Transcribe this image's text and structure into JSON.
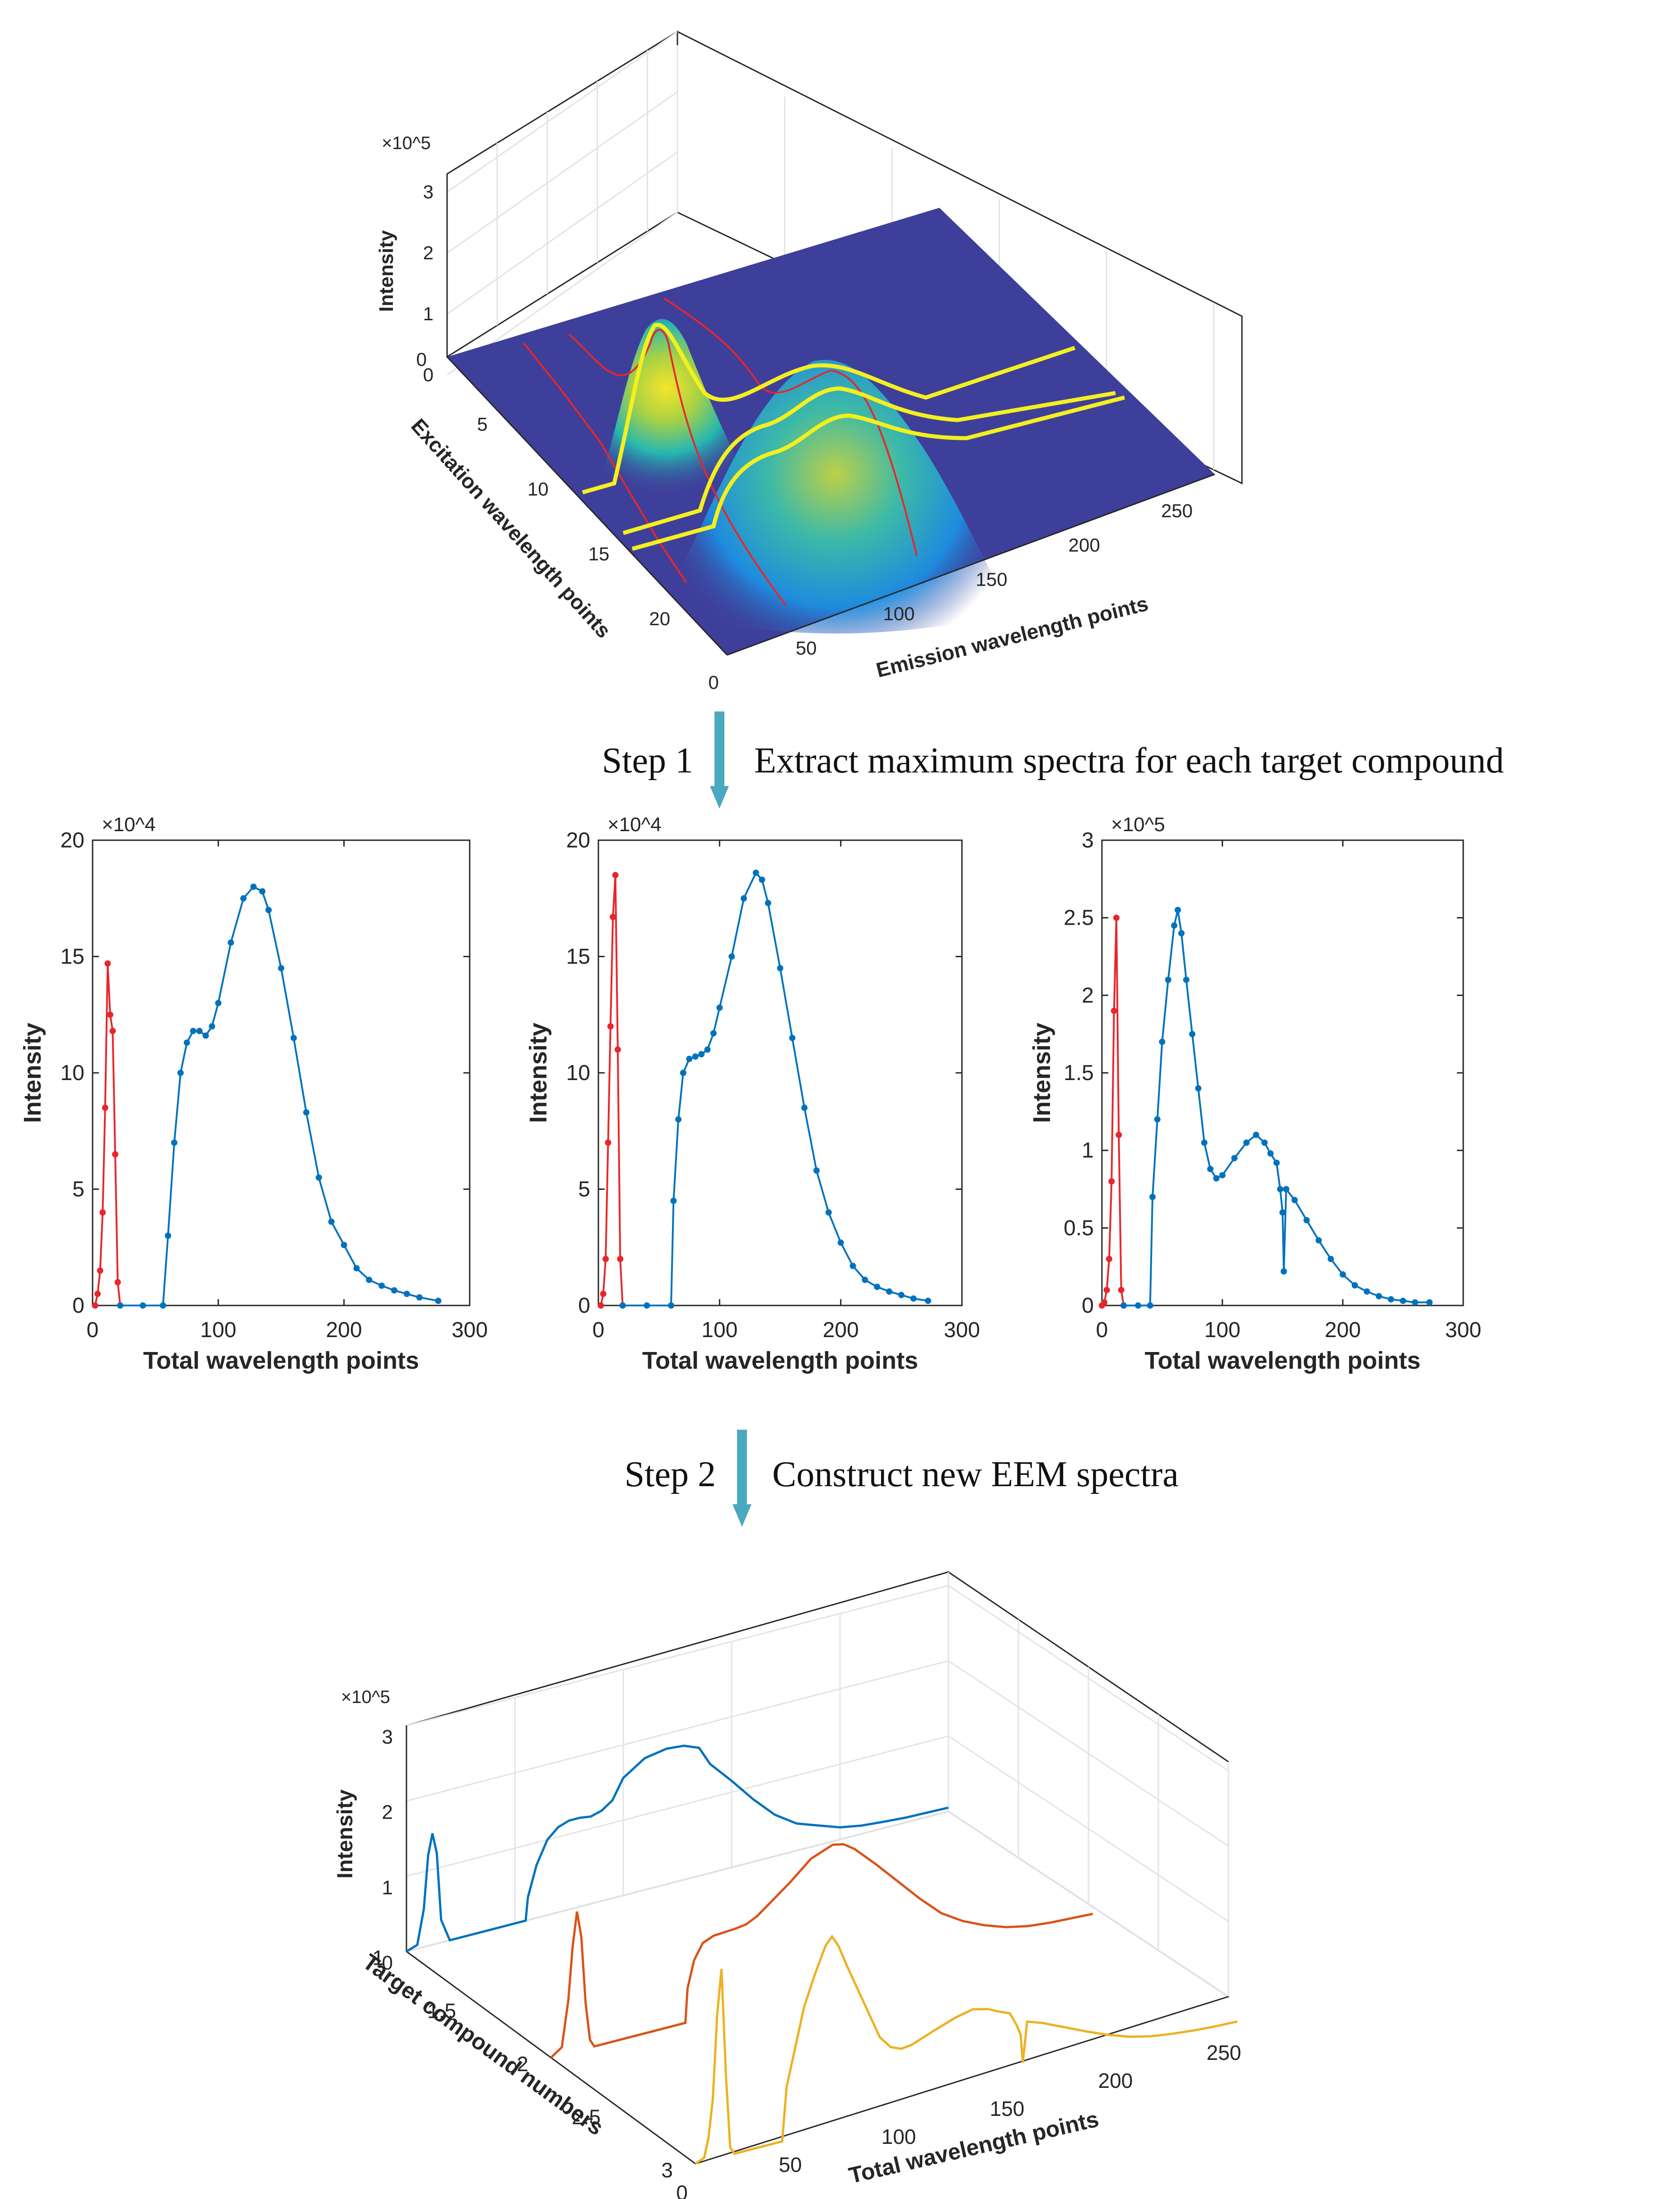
{
  "colors": {
    "blue": "#0072BD",
    "red": "#E8262B",
    "orange": "#D95319",
    "yellow": "#EDB120",
    "arrow": "#4AA8C0",
    "surface_low": "#3E3F9A",
    "highlight": "#F4EF1F"
  },
  "steps": [
    {
      "label": "Step 1",
      "text": "Extract maximum spectra for each target compound"
    },
    {
      "label": "Step 2",
      "text": "Construct new EEM spectra"
    }
  ],
  "chart_data": [
    {
      "type": "surface",
      "xlabel": "Emission wavelength points",
      "ylabel": "Excitation wavelength points",
      "zlabel": "Intensity",
      "exponent": "×10^5",
      "x_ticks": [
        "0",
        "50",
        "100",
        "150",
        "200",
        "250"
      ],
      "y_ticks": [
        "0",
        "5",
        "10",
        "15",
        "20"
      ],
      "z_ticks": [
        "0",
        "1",
        "2",
        "3"
      ],
      "xlim": [
        0,
        250
      ],
      "ylim": [
        0,
        23
      ],
      "zlim": [
        0,
        3
      ],
      "grid": true,
      "peaks": [
        {
          "emission": 30,
          "excitation": 10,
          "intensity": 1.4
        },
        {
          "emission": 110,
          "excitation": 12,
          "intensity": 1.0
        }
      ]
    },
    {
      "type": "line",
      "xlabel": "Total wavelength points",
      "ylabel": "Intensity",
      "exponent": "×10^4",
      "xlim": [
        0,
        300
      ],
      "ylim": [
        0,
        20
      ],
      "x_ticks": [
        "0",
        "100",
        "200",
        "300"
      ],
      "y_ticks": [
        "0",
        "5",
        "10",
        "15",
        "20"
      ],
      "series": [
        {
          "color": "red",
          "x": [
            2,
            4,
            6,
            8,
            10,
            12,
            14,
            16,
            18,
            20,
            22
          ],
          "y": [
            0,
            0.5,
            1.5,
            4,
            8.5,
            14.7,
            12.5,
            11.8,
            6.5,
            1,
            0
          ]
        },
        {
          "color": "blue",
          "x": [
            22,
            40,
            56,
            60,
            65,
            70,
            75,
            80,
            85,
            90,
            95,
            100,
            110,
            120,
            128,
            135,
            140,
            150,
            160,
            170,
            180,
            190,
            200,
            210,
            220,
            230,
            240,
            250,
            260,
            275
          ],
          "y": [
            0,
            0,
            0,
            3,
            7,
            10,
            11.3,
            11.8,
            11.8,
            11.6,
            12,
            13,
            15.6,
            17.5,
            18,
            17.8,
            17,
            14.5,
            11.5,
            8.3,
            5.5,
            3.6,
            2.6,
            1.6,
            1.1,
            0.85,
            0.65,
            0.5,
            0.35,
            0.2
          ]
        }
      ]
    },
    {
      "type": "line",
      "xlabel": "Total wavelength points",
      "ylabel": "Intensity",
      "exponent": "×10^4",
      "xlim": [
        0,
        300
      ],
      "ylim": [
        0,
        20
      ],
      "x_ticks": [
        "0",
        "100",
        "200",
        "300"
      ],
      "y_ticks": [
        "0",
        "5",
        "10",
        "15",
        "20"
      ],
      "series": [
        {
          "color": "red",
          "x": [
            2,
            4,
            6,
            8,
            10,
            12,
            14,
            16,
            18,
            20
          ],
          "y": [
            0,
            0.5,
            2,
            7,
            12,
            16.7,
            18.5,
            11,
            2,
            0
          ]
        },
        {
          "color": "blue",
          "x": [
            20,
            40,
            60,
            62,
            66,
            70,
            75,
            80,
            85,
            90,
            95,
            100,
            110,
            120,
            130,
            135,
            140,
            150,
            160,
            170,
            180,
            190,
            200,
            210,
            220,
            230,
            240,
            250,
            260,
            272
          ],
          "y": [
            0,
            0,
            0,
            4.5,
            8,
            10,
            10.6,
            10.7,
            10.8,
            11,
            11.7,
            12.8,
            15,
            17.5,
            18.6,
            18.3,
            17.3,
            14.5,
            11.5,
            8.5,
            5.8,
            4,
            2.7,
            1.7,
            1.1,
            0.8,
            0.6,
            0.45,
            0.3,
            0.2
          ]
        }
      ]
    },
    {
      "type": "line",
      "xlabel": "Total wavelength points",
      "ylabel": "Intensity",
      "exponent": "×10^5",
      "xlim": [
        0,
        300
      ],
      "ylim": [
        0,
        3
      ],
      "x_ticks": [
        "0",
        "100",
        "200",
        "300"
      ],
      "y_ticks": [
        "0",
        "0.5",
        "1",
        "1.5",
        "2",
        "2.5",
        "3"
      ],
      "series": [
        {
          "color": "red",
          "x": [
            0,
            2,
            4,
            6,
            8,
            10,
            12,
            14,
            16,
            18
          ],
          "y": [
            0,
            0.02,
            0.1,
            0.3,
            0.8,
            1.9,
            2.5,
            1.1,
            0.1,
            0
          ]
        },
        {
          "color": "blue",
          "x": [
            18,
            30,
            40,
            42,
            46,
            50,
            55,
            60,
            63,
            66,
            70,
            75,
            80,
            85,
            90,
            95,
            100,
            110,
            120,
            128,
            135,
            140,
            145,
            148,
            150,
            151,
            153,
            160,
            170,
            180,
            190,
            200,
            210,
            220,
            230,
            240,
            250,
            260,
            272
          ],
          "y": [
            0,
            0,
            0,
            0.7,
            1.2,
            1.7,
            2.1,
            2.45,
            2.55,
            2.4,
            2.1,
            1.75,
            1.4,
            1.05,
            0.88,
            0.82,
            0.84,
            0.95,
            1.05,
            1.1,
            1.05,
            0.98,
            0.92,
            0.75,
            0.6,
            0.22,
            0.75,
            0.68,
            0.55,
            0.42,
            0.3,
            0.2,
            0.13,
            0.09,
            0.06,
            0.04,
            0.03,
            0.02,
            0.02
          ]
        }
      ]
    },
    {
      "type": "line3d",
      "xlabel": "Total wavelength points",
      "ylabel": "Target compound numbers",
      "zlabel": "Intensity",
      "exponent": "×10^5",
      "x_ticks": [
        "0",
        "50",
        "100",
        "150",
        "200",
        "250"
      ],
      "y_ticks": [
        "1",
        "1.5",
        "2",
        "2.5",
        "3"
      ],
      "z_ticks": [
        "0",
        "1",
        "2",
        "3"
      ],
      "xlim": [
        0,
        250
      ],
      "ylim": [
        1,
        3
      ],
      "zlim": [
        0,
        3
      ],
      "grid": true,
      "series": [
        {
          "color": "blue",
          "compound": 1,
          "x": [
            0,
            5,
            8,
            10,
            12,
            14,
            16,
            20,
            55,
            56,
            60,
            65,
            70,
            75,
            80,
            85,
            90,
            95,
            100,
            110,
            120,
            128,
            135,
            140,
            150,
            160,
            170,
            180,
            190,
            200,
            210,
            220,
            230,
            250
          ],
          "y": [
            0,
            0.05,
            0.5,
            1.2,
            1.48,
            1.2,
            0.3,
            0,
            0,
            0.3,
            0.7,
            1.0,
            1.13,
            1.18,
            1.18,
            1.16,
            1.2,
            1.3,
            1.56,
            1.75,
            1.8,
            1.78,
            1.7,
            1.45,
            1.15,
            0.83,
            0.55,
            0.36,
            0.26,
            0.16,
            0.11,
            0.085,
            0.065,
            0.05
          ]
        },
        {
          "color": "orange",
          "compound": 2,
          "x": [
            0,
            5,
            8,
            10,
            12,
            14,
            16,
            18,
            20,
            62,
            63,
            66,
            70,
            75,
            80,
            85,
            90,
            95,
            100,
            110,
            120,
            130,
            135,
            140,
            150,
            160,
            170,
            180,
            190,
            200,
            210,
            220,
            230,
            250
          ],
          "y": [
            0,
            0.1,
            0.7,
            1.4,
            1.85,
            1.5,
            0.6,
            0.1,
            0,
            0,
            0.45,
            0.8,
            1.0,
            1.06,
            1.07,
            1.08,
            1.1,
            1.17,
            1.28,
            1.5,
            1.75,
            1.86,
            1.83,
            1.73,
            1.45,
            1.15,
            0.85,
            0.58,
            0.4,
            0.27,
            0.17,
            0.11,
            0.08,
            0.05
          ]
        },
        {
          "color": "yellow",
          "compound": 3,
          "x": [
            0,
            4,
            6,
            8,
            10,
            12,
            14,
            16,
            18,
            40,
            42,
            46,
            50,
            55,
            60,
            63,
            66,
            70,
            75,
            80,
            85,
            90,
            95,
            100,
            110,
            120,
            128,
            135,
            140,
            145,
            148,
            150,
            151,
            153,
            160,
            170,
            180,
            190,
            200,
            210,
            220,
            230,
            240,
            250
          ],
          "y": [
            0,
            0.05,
            0.3,
            0.8,
            1.9,
            2.5,
            1.1,
            0.1,
            0,
            0,
            0.7,
            1.2,
            1.7,
            2.1,
            2.45,
            2.55,
            2.4,
            2.1,
            1.75,
            1.4,
            1.05,
            0.88,
            0.82,
            0.84,
            0.95,
            1.05,
            1.1,
            1.05,
            0.98,
            0.92,
            0.75,
            0.6,
            0.22,
            0.75,
            0.68,
            0.55,
            0.42,
            0.3,
            0.2,
            0.13,
            0.09,
            0.06,
            0.04,
            0.03
          ]
        }
      ]
    }
  ]
}
